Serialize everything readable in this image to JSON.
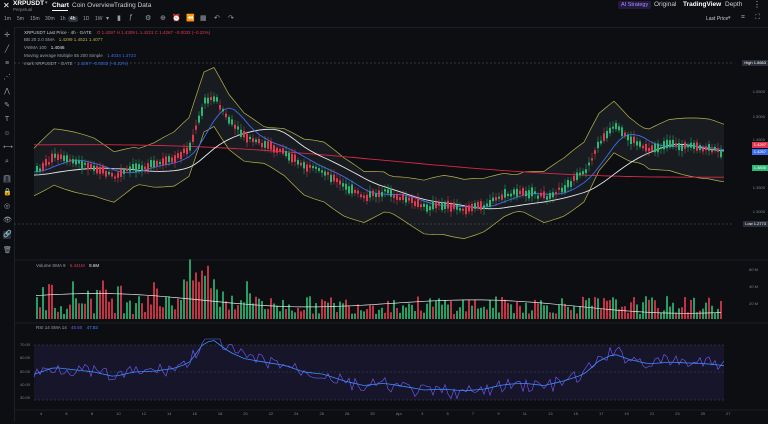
{
  "header": {
    "symbol": "XRPUSDT",
    "subtitle": "Perpetual",
    "tabs": [
      {
        "label": "Chart",
        "active": true
      },
      {
        "label": "Coin Overview",
        "active": false
      },
      {
        "label": "Trading Data",
        "active": false
      }
    ],
    "right": {
      "ai_button": "AI Strategy",
      "original": "Original",
      "tradingview": "TradingView",
      "depth": "Depth"
    }
  },
  "toolbar": {
    "timeframes": [
      "1m",
      "5m",
      "15m",
      "30m",
      "1h",
      "4h",
      "1D",
      "1W"
    ],
    "active_timeframe": "4h",
    "price_mode": "Last Price"
  },
  "legend": {
    "title": "XRPUSDT Last Price · 4h · GATE",
    "ohlc": "O 1.4297  H 1.4309  L 1.4221  C 1.4267  −0.0032 (−0.22%)",
    "bb_label": "BB 20 2.0 SMA",
    "bb_values": "1.4299  1.4521  1.4077",
    "vwap_label": "VWMA 100",
    "vwap_value": "1.4046",
    "ma_label": "Moving average Multiple 55 200 Simple",
    "ma_values": "1.4034  1.3723",
    "mark_label": "mark XRPUSDT · GATE",
    "mark_values": "1.4267  −0.0032 (−0.22%)"
  },
  "price_axis": {
    "high_label": "High",
    "high_value": "1.6663",
    "low_label": "Low",
    "low_value": "1.2773",
    "current_1": "1.4297",
    "current_2": "1.4267",
    "current_3": "1.3836",
    "ticks": [
      "1.6500",
      "1.5500",
      "1.5000",
      "1.4500",
      "1.4000",
      "1.3500",
      "1.3000",
      "1.2500",
      "1.2000"
    ]
  },
  "volume": {
    "label": "Volume SMA 9",
    "value_1": "6.441M",
    "value_2": "8.6M",
    "ticks": [
      "60 M",
      "40 M",
      "20 M"
    ]
  },
  "rsi": {
    "label": "RSI 14 SMA 14",
    "value_1": "45.50",
    "value_2": "47.83",
    "ticks": [
      "70.00",
      "60.00",
      "50.00",
      "40.00",
      "30.00"
    ]
  },
  "time_axis": [
    "4",
    "6",
    "8",
    "10",
    "12",
    "14",
    "16",
    "18",
    "20",
    "22",
    "24",
    "26",
    "28",
    "30",
    "Apr",
    "3",
    "5",
    "7",
    "9",
    "11",
    "13",
    "15",
    "17",
    "19",
    "21",
    "23",
    "25",
    "27"
  ],
  "colors": {
    "up": "#2bb673",
    "down": "#e0394f",
    "bb": "#b7b34a",
    "ma_blue": "#3a6df0",
    "ma_white": "#e8e8e8",
    "ma_red": "#d6284a",
    "rsi": "#7a5cff",
    "rsi_sma": "#3a8dff"
  }
}
